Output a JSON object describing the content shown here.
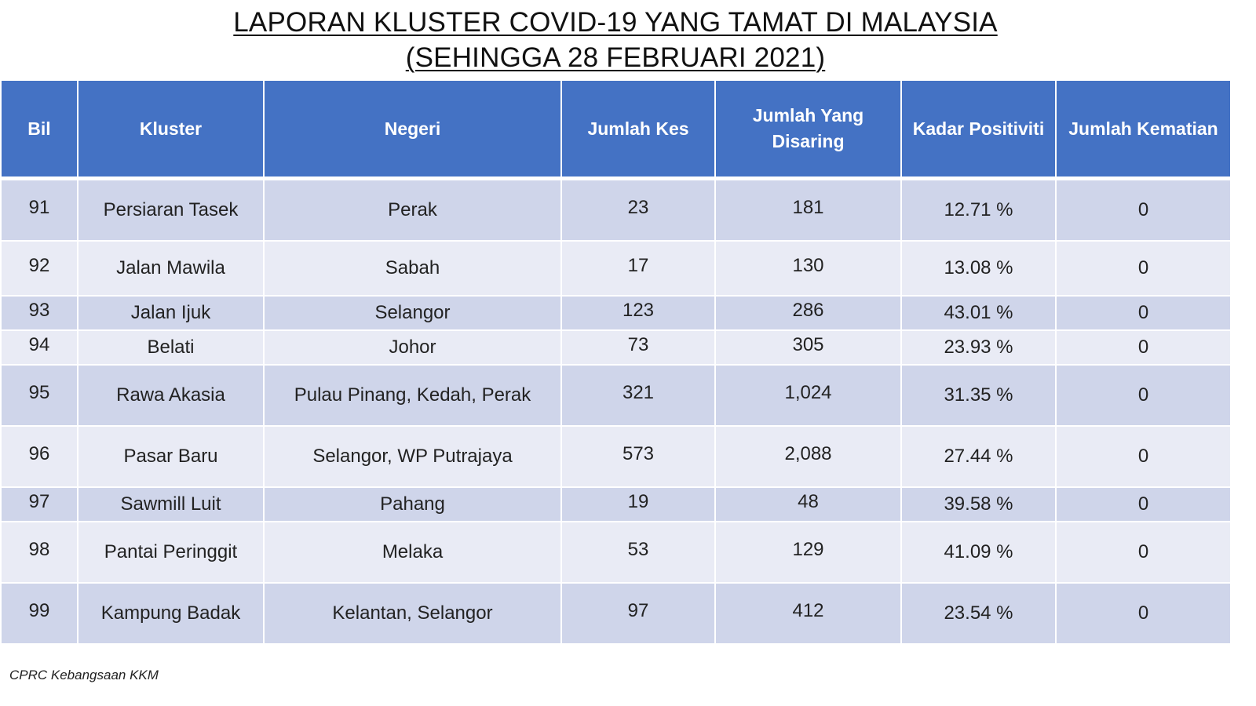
{
  "title": {
    "line1": "LAPORAN KLUSTER COVID-19 YANG TAMAT DI MALAYSIA",
    "line2": "(SEHINGGA  28 FEBRUARI 2021)"
  },
  "table": {
    "headers": [
      "Bil",
      "Kluster",
      "Negeri",
      "Jumlah Kes",
      "Jumlah Yang Disaring",
      "Kadar Positiviti",
      "Jumlah Kematian"
    ],
    "rows": [
      [
        "91",
        "Persiaran Tasek",
        "Perak",
        "23",
        "181",
        "12.71 %",
        "0"
      ],
      [
        "92",
        "Jalan Mawila",
        "Sabah",
        "17",
        "130",
        "13.08 %",
        "0"
      ],
      [
        "93",
        "Jalan Ijuk",
        "Selangor",
        "123",
        "286",
        "43.01 %",
        "0"
      ],
      [
        "94",
        "Belati",
        "Johor",
        "73",
        "305",
        "23.93 %",
        "0"
      ],
      [
        "95",
        "Rawa Akasia",
        "Pulau Pinang, Kedah, Perak",
        "321",
        "1,024",
        "31.35 %",
        "0"
      ],
      [
        "96",
        "Pasar Baru",
        "Selangor, WP Putrajaya",
        "573",
        "2,088",
        "27.44 %",
        "0"
      ],
      [
        "97",
        "Sawmill Luit",
        "Pahang",
        "19",
        "48",
        "39.58 %",
        "0"
      ],
      [
        "98",
        "Pantai Peringgit",
        "Melaka",
        "53",
        "129",
        "41.09 %",
        "0"
      ],
      [
        "99",
        "Kampung Badak",
        "Kelantan, Selangor",
        "97",
        "412",
        "23.54 %",
        "0"
      ]
    ]
  },
  "source": "CPRC Kebangsaan KKM",
  "colors": {
    "header_bg": "#4472c4",
    "row_dark": "#cfd5ea",
    "row_light": "#e9ebf5"
  }
}
